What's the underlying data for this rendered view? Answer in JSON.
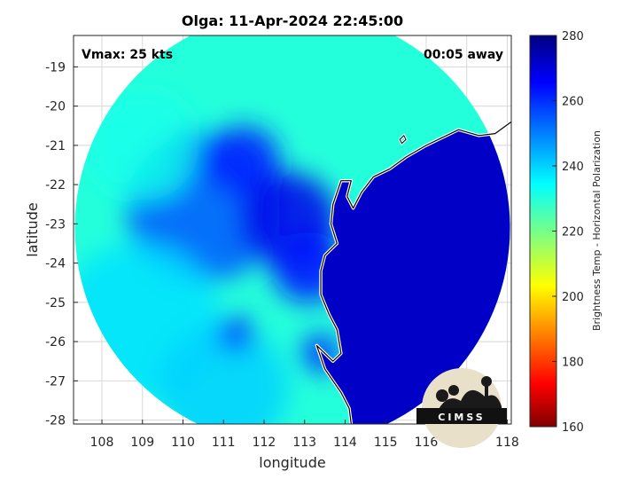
{
  "chart_data": {
    "type": "heatmap",
    "title": "Olga: 11-Apr-2024 22:45:00",
    "xlabel": "longitude",
    "ylabel": "latitude",
    "xlim": [
      107.3,
      118.1
    ],
    "ylim": [
      -28.1,
      -18.2
    ],
    "xticks": [
      108,
      109,
      110,
      111,
      112,
      113,
      114,
      115,
      116,
      117,
      118
    ],
    "yticks": [
      -19,
      -20,
      -21,
      -22,
      -23,
      -24,
      -25,
      -26,
      -27,
      -28
    ],
    "grid": true,
    "annotations": {
      "top_left": "Vmax: 25 kts",
      "top_right": "00:05 away"
    },
    "colorbar": {
      "label": "Brightness Temp - Horizontal Polarization",
      "min": 160,
      "max": 280,
      "ticks": [
        160,
        180,
        200,
        220,
        240,
        260,
        280
      ],
      "colormap": "jet"
    },
    "swath": {
      "center_lon": 112.7,
      "center_lat": -23.1,
      "radius_deg": 5.55
    },
    "fields": [
      {
        "lon": 110.5,
        "lat": -22.6,
        "r": 1.9,
        "value": 255
      },
      {
        "lon": 110.2,
        "lat": -21.2,
        "r": 0.6,
        "value": 265
      },
      {
        "lon": 111.5,
        "lat": -21.4,
        "r": 0.9,
        "value": 262
      },
      {
        "lon": 112.6,
        "lat": -22.9,
        "r": 1.2,
        "value": 268
      },
      {
        "lon": 113.1,
        "lat": -24.1,
        "r": 0.9,
        "value": 264
      },
      {
        "lon": 109.0,
        "lat": -21.0,
        "r": 1.4,
        "value": 232
      },
      {
        "lon": 108.9,
        "lat": -25.5,
        "r": 2.0,
        "value": 238
      },
      {
        "lon": 111.0,
        "lat": -27.2,
        "r": 1.6,
        "value": 240
      },
      {
        "lon": 111.3,
        "lat": -25.8,
        "r": 0.45,
        "value": 262
      },
      {
        "lon": 113.4,
        "lat": -26.3,
        "r": 0.5,
        "value": 260
      }
    ],
    "land_value": 272,
    "coastline": [
      [
        118.1,
        -20.4
      ],
      [
        117.7,
        -20.7
      ],
      [
        117.3,
        -20.75
      ],
      [
        116.8,
        -20.6
      ],
      [
        116.5,
        -20.75
      ],
      [
        116.0,
        -21.0
      ],
      [
        115.5,
        -21.3
      ],
      [
        115.1,
        -21.6
      ],
      [
        114.7,
        -21.8
      ],
      [
        114.4,
        -22.2
      ],
      [
        114.2,
        -22.6
      ],
      [
        114.05,
        -22.3
      ],
      [
        114.15,
        -21.9
      ],
      [
        113.9,
        -21.9
      ],
      [
        113.7,
        -22.5
      ],
      [
        113.65,
        -23.0
      ],
      [
        113.8,
        -23.5
      ],
      [
        113.5,
        -23.8
      ],
      [
        113.4,
        -24.2
      ],
      [
        113.4,
        -24.8
      ],
      [
        113.6,
        -25.3
      ],
      [
        113.8,
        -25.7
      ],
      [
        113.9,
        -26.3
      ],
      [
        113.7,
        -26.5
      ],
      [
        113.3,
        -26.1
      ],
      [
        113.5,
        -26.7
      ],
      [
        113.9,
        -27.3
      ],
      [
        114.1,
        -27.7
      ],
      [
        114.15,
        -28.1
      ]
    ],
    "islands": [
      [
        [
          115.35,
          -20.85
        ],
        [
          115.45,
          -20.75
        ],
        [
          115.5,
          -20.85
        ],
        [
          115.4,
          -20.95
        ],
        [
          115.35,
          -20.85
        ]
      ]
    ],
    "logo_text": "CIMSS"
  },
  "colors": {
    "coastline": "#000000",
    "coastline_halo": "#ffffff",
    "grid": "#d8d8d8"
  }
}
